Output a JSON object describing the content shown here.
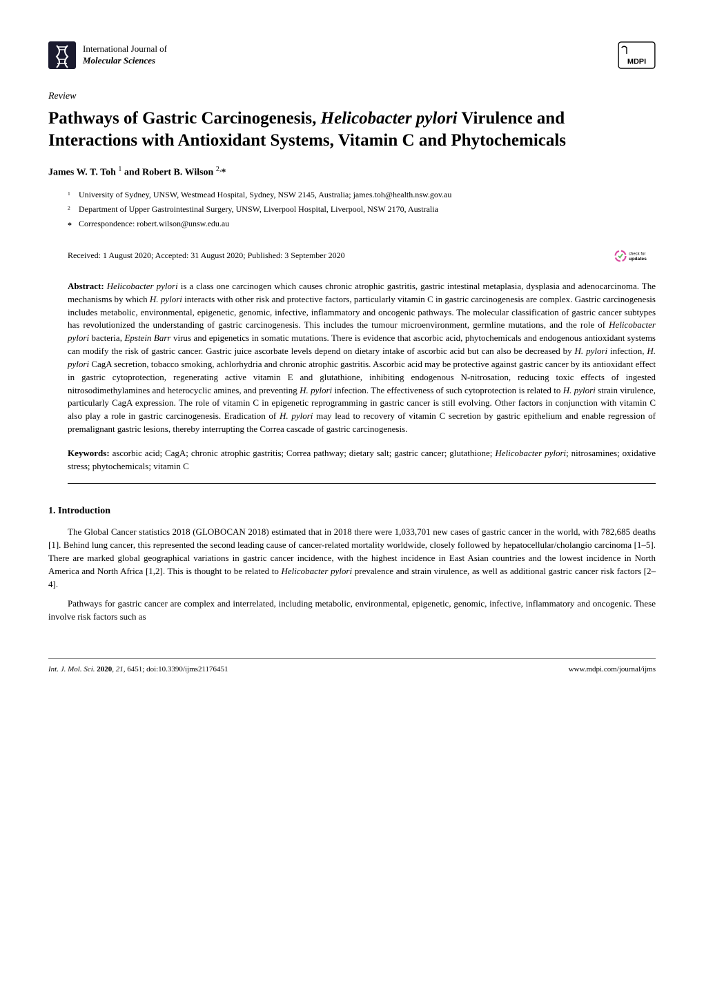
{
  "header": {
    "journal_line1": "International Journal of",
    "journal_line2": "Molecular Sciences",
    "publisher": "MDPI"
  },
  "article": {
    "type": "Review",
    "title_html": "Pathways of Gastric Carcinogenesis, <span class=\"italic\">Helicobacter pylori</span> Virulence and Interactions with Antioxidant Systems, Vitamin C and Phytochemicals",
    "authors_html": "James W. T. Toh <sup>1</sup> and Robert B. Wilson <sup>2,</sup>*",
    "affiliations": [
      {
        "num": "1",
        "text": "University of Sydney, UNSW, Westmead Hospital, Sydney, NSW 2145, Australia; james.toh@health.nsw.gov.au"
      },
      {
        "num": "2",
        "text": "Department of Upper Gastrointestinal Surgery, UNSW, Liverpool Hospital, Liverpool, NSW 2170, Australia"
      },
      {
        "num": "*",
        "text": "Correspondence: robert.wilson@unsw.edu.au"
      }
    ],
    "dates": "Received: 1 August 2020; Accepted: 31 August 2020; Published: 3 September 2020",
    "check_updates_label": "check for updates"
  },
  "abstract": {
    "label": "Abstract:",
    "text_html": " <span class=\"italic\">Helicobacter pylori</span> is a class one carcinogen which causes chronic atrophic gastritis, gastric intestinal metaplasia, dysplasia and adenocarcinoma. The mechanisms by which <span class=\"italic\">H. pylori</span> interacts with other risk and protective factors, particularly vitamin C in gastric carcinogenesis are complex. Gastric carcinogenesis includes metabolic, environmental, epigenetic, genomic, infective, inflammatory and oncogenic pathways. The molecular classification of gastric cancer subtypes has revolutionized the understanding of gastric carcinogenesis. This includes the tumour microenvironment, germline mutations, and the role of <span class=\"italic\">Helicobacter pylori</span> bacteria, <span class=\"italic\">Epstein Barr</span> virus and epigenetics in somatic mutations. There is evidence that ascorbic acid, phytochemicals and endogenous antioxidant systems can modify the risk of gastric cancer. Gastric juice ascorbate levels depend on dietary intake of ascorbic acid but can also be decreased by <span class=\"italic\">H. pylori</span> infection, <span class=\"italic\">H. pylori</span> CagA secretion, tobacco smoking, achlorhydria and chronic atrophic gastritis. Ascorbic acid may be protective against gastric cancer by its antioxidant effect in gastric cytoprotection, regenerating active vitamin E and glutathione, inhibiting endogenous N-nitrosation, reducing toxic effects of ingested nitrosodimethylamines and heterocyclic amines, and preventing <span class=\"italic\">H. pylori</span> infection. The effectiveness of such cytoprotection is related to <span class=\"italic\">H. pylori</span> strain virulence, particularly CagA expression. The role of vitamin C in epigenetic reprogramming in gastric cancer is still evolving. Other factors in conjunction with vitamin C also play a role in gastric carcinogenesis. Eradication of <span class=\"italic\">H. pylori</span> may lead to recovery of vitamin C secretion by gastric epithelium and enable regression of premalignant gastric lesions, thereby interrupting the Correa cascade of gastric carcinogenesis."
  },
  "keywords": {
    "label": "Keywords:",
    "text_html": " ascorbic acid; CagA; chronic atrophic gastritis; Correa pathway; dietary salt; gastric cancer; glutathione; <span class=\"italic\">Helicobacter pylori</span>; nitrosamines; oxidative stress; phytochemicals; vitamin C"
  },
  "sections": [
    {
      "heading": "1. Introduction",
      "paragraphs": [
        "The Global Cancer statistics 2018 (GLOBOCAN 2018) estimated that in 2018 there were 1,033,701 new cases of gastric cancer in the world, with 782,685 deaths [1]. Behind lung cancer, this represented the second leading cause of cancer-related mortality worldwide, closely followed by hepatocellular/cholangio carcinoma [1–5]. There are marked global geographical variations in gastric cancer incidence, with the highest incidence in East Asian countries and the lowest incidence in North America and North Africa [1,2]. This is thought to be related to <span class=\"italic\">Helicobacter pylori</span> prevalence and strain virulence, as well as additional gastric cancer risk factors [2–4].",
        "Pathways for gastric cancer are complex and interrelated, including metabolic, environmental, epigenetic, genomic, infective, inflammatory and oncogenic. These involve risk factors such as"
      ]
    }
  ],
  "footer": {
    "left_html": "<span class=\"italic\">Int. J. Mol. Sci.</span> <b>2020</b>, <span class=\"italic\">21</span>, 6451; doi:10.3390/ijms21176451",
    "right": "www.mdpi.com/journal/ijms"
  },
  "colors": {
    "text": "#000000",
    "background": "#ffffff",
    "link": "#0066cc",
    "check_green": "#5cb85c",
    "dna_dark": "#1a1a2e"
  }
}
